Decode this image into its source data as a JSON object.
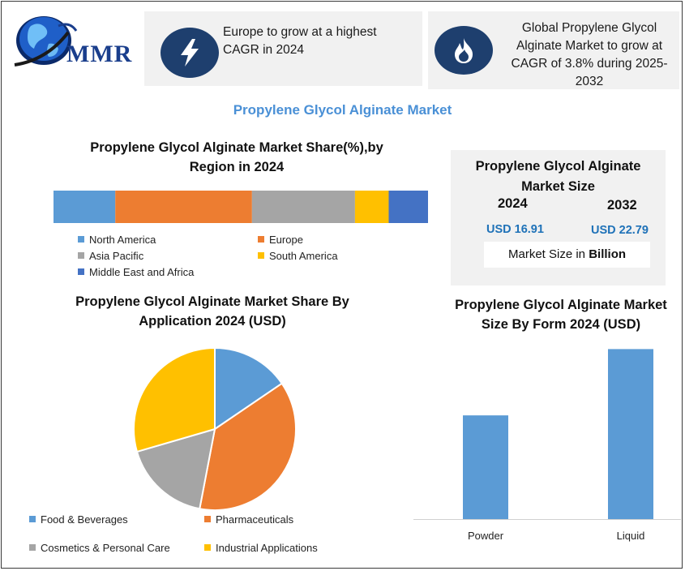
{
  "logo": {
    "text": "MMR"
  },
  "highlights": [
    {
      "icon": "lightning-icon",
      "text_lines": [
        "Europe to grow at a highest",
        "CAGR in 2024"
      ]
    },
    {
      "icon": "flame-icon",
      "text_lines": [
        "Global Propylene Glycol",
        "Alginate Market to grow at",
        "CAGR of 3.8% during 2025-",
        "2032"
      ]
    }
  ],
  "main_title": "Propylene Glycol Alginate Market",
  "market_size": {
    "title_lines": [
      "Propylene Glycol Alginate",
      "Market Size"
    ],
    "year_a": "2024",
    "year_b": "2032",
    "value_a": "USD 16.91",
    "value_b": "USD 22.79",
    "unit_prefix": "Market Size in ",
    "unit_bold": "Billion"
  },
  "chart_data": [
    {
      "type": "bar",
      "orientation": "horizontal-stacked",
      "title_lines": [
        "Propylene Glycol Alginate Market Share(%),by",
        "Region in 2024"
      ],
      "series": [
        {
          "name": "North America",
          "value": 16.5,
          "color": "#5b9bd5"
        },
        {
          "name": "Europe",
          "value": 36.5,
          "color": "#ed7d31"
        },
        {
          "name": "Asia Pacific",
          "value": 27.5,
          "color": "#a5a5a5"
        },
        {
          "name": "South America",
          "value": 9.0,
          "color": "#ffc000"
        },
        {
          "name": "Middle East and Africa",
          "value": 10.5,
          "color": "#4472c4"
        }
      ],
      "legend_placement": "bottom"
    },
    {
      "type": "pie",
      "title_lines": [
        "Propylene Glycol Alginate Market Share By",
        "Application  2024  (USD)"
      ],
      "slices": [
        {
          "name": "Food & Beverages",
          "value": 15.5,
          "color": "#5b9bd5"
        },
        {
          "name": "Pharmaceuticals",
          "value": 37.5,
          "color": "#ed7d31"
        },
        {
          "name": "Cosmetics & Personal Care",
          "value": 17.5,
          "color": "#a5a5a5"
        },
        {
          "name": "Industrial Applications",
          "value": 29.5,
          "color": "#ffc000"
        }
      ],
      "legend_placement": "bottom"
    },
    {
      "type": "bar",
      "title_lines": [
        "Propylene Glycol Alginate Market",
        "Size By Form 2024  (USD)"
      ],
      "categories": [
        "Powder",
        "Liquid"
      ],
      "values": [
        6.1,
        10.0
      ],
      "ylim": [
        0,
        10.4
      ],
      "color": "#5b9bd5",
      "grid": false
    }
  ]
}
